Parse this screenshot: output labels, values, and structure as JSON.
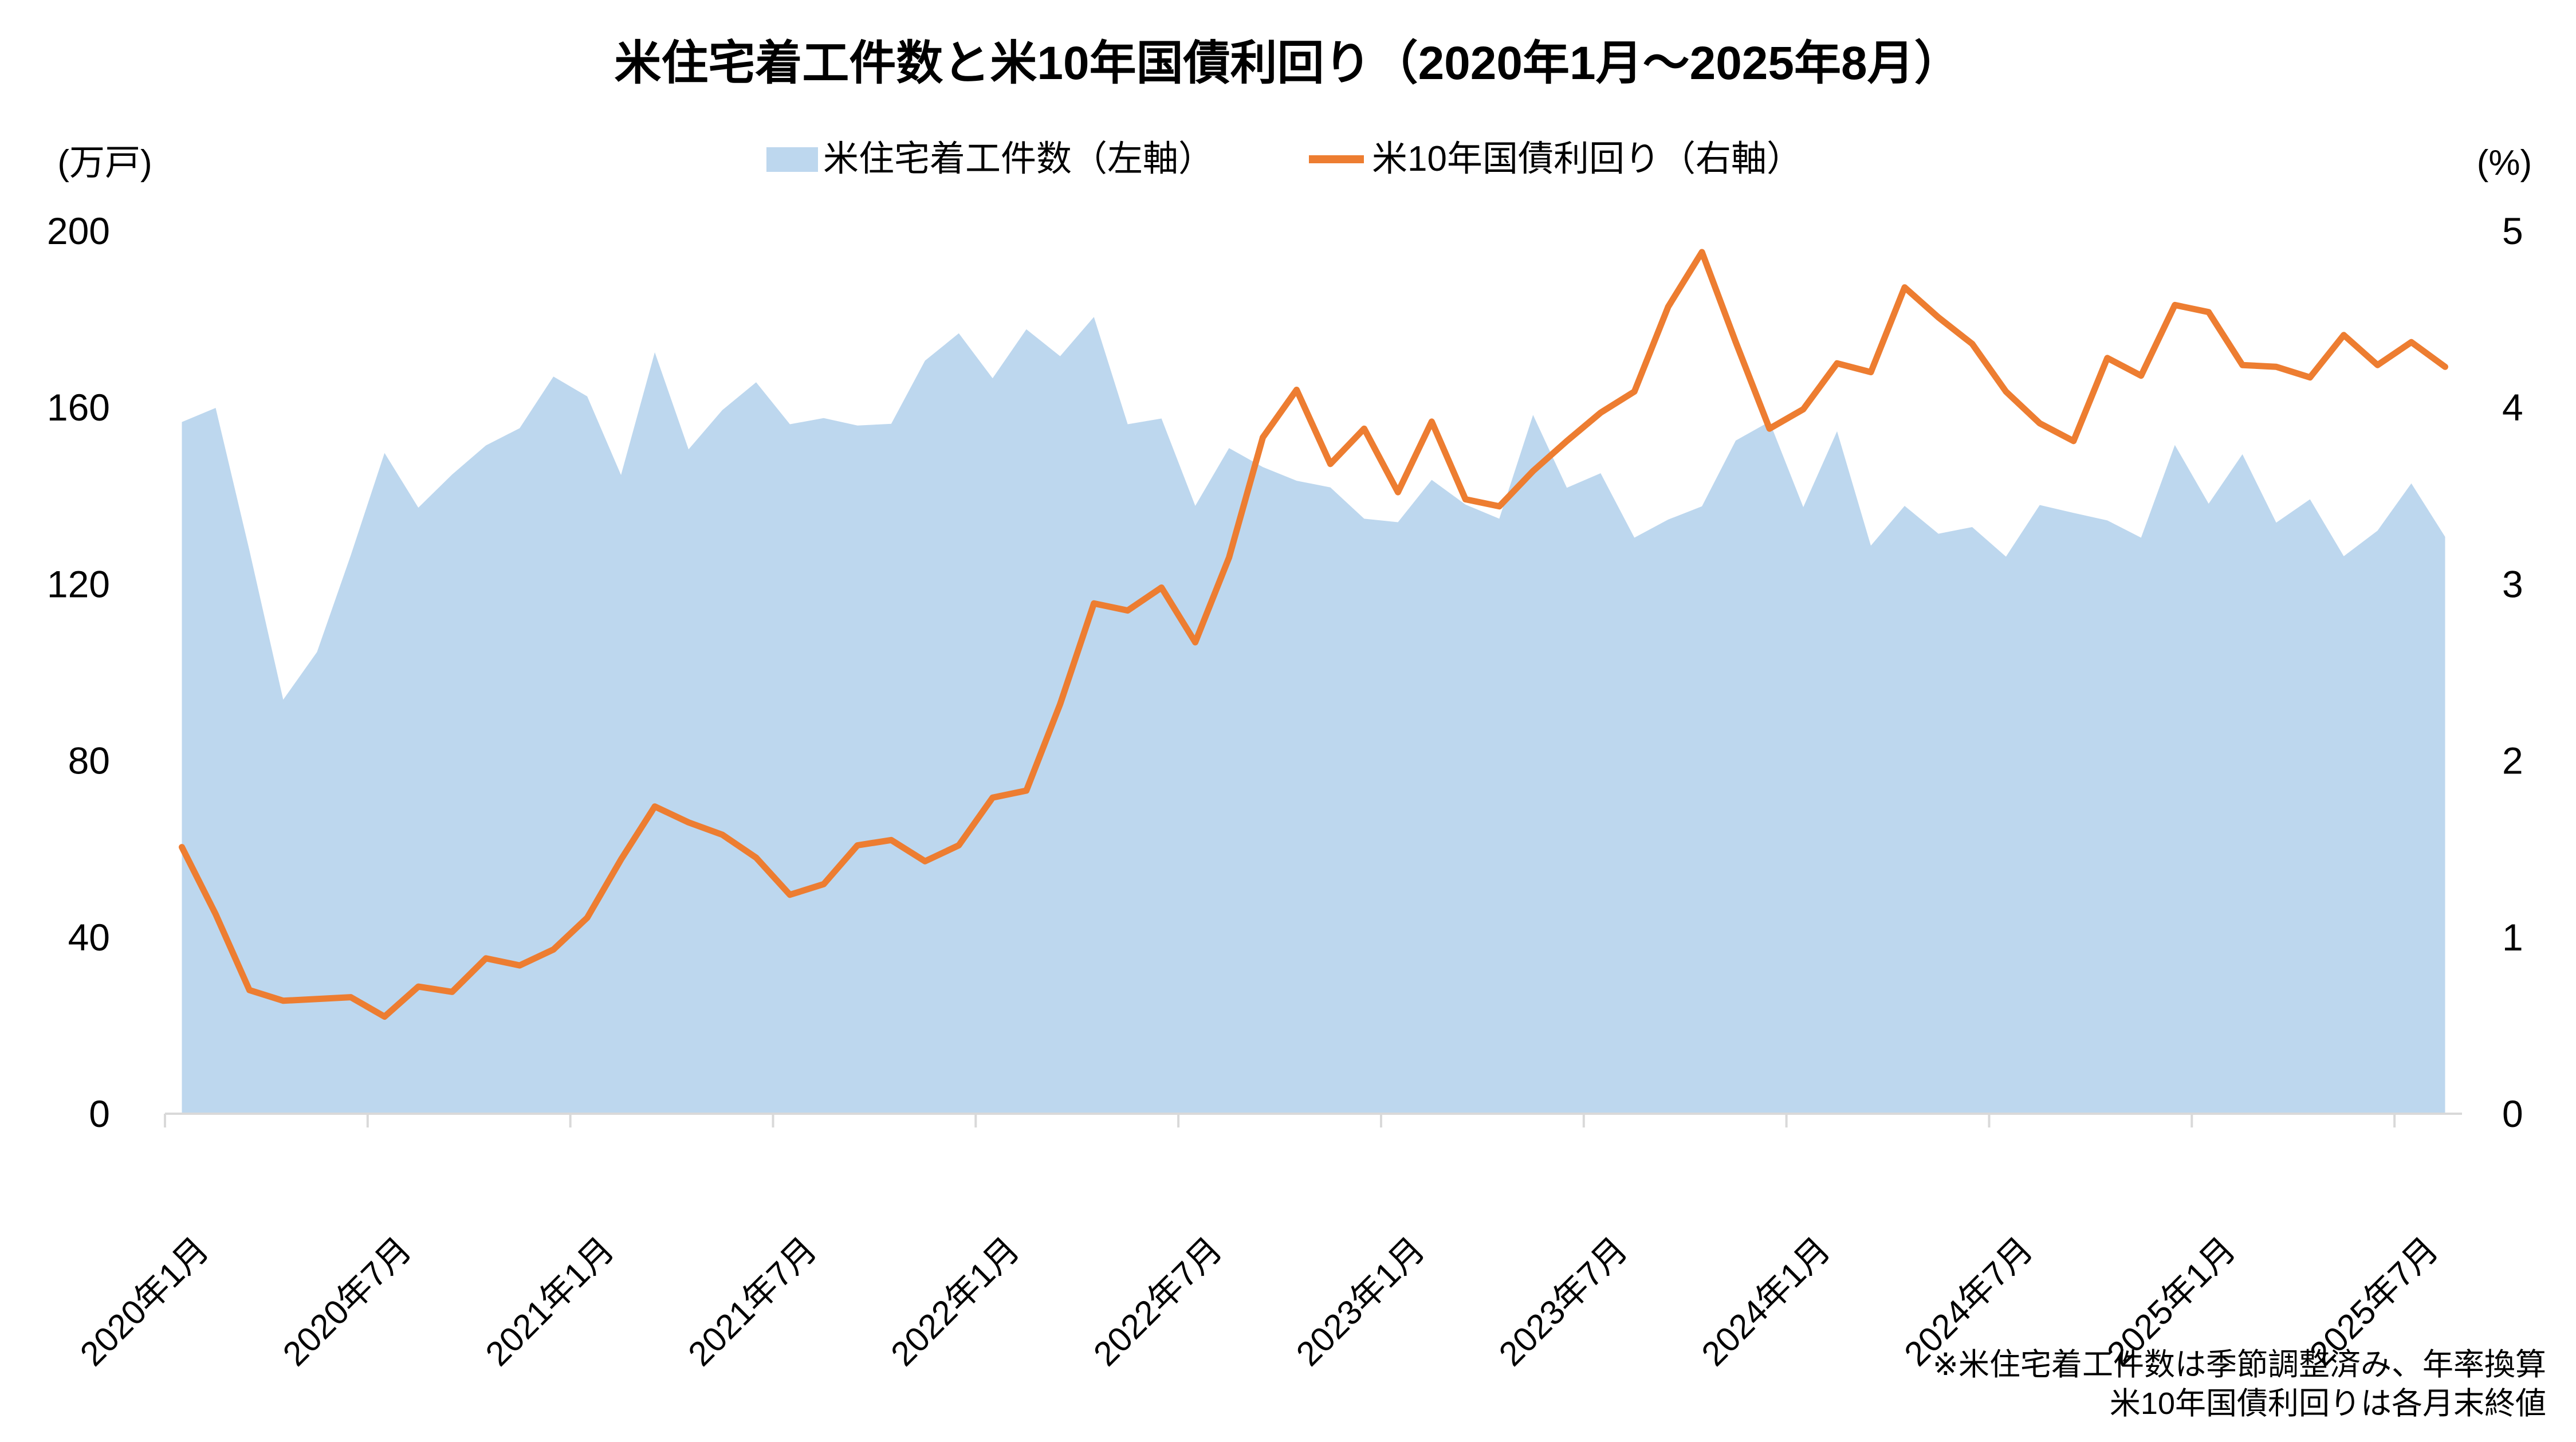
{
  "chart_data": {
    "type": "combo",
    "title": "米住宅着工件数と米10年国債利回り（2020年1月～2025年8月）",
    "footnote": {
      "line1": "※米住宅着工件数は季節調整済み、年率換算",
      "line2": "米10年国債利回りは各月末終値"
    },
    "legend_position": "top-center",
    "grid": "off",
    "x": [
      "2020-01",
      "2020-02",
      "2020-03",
      "2020-04",
      "2020-05",
      "2020-06",
      "2020-07",
      "2020-08",
      "2020-09",
      "2020-10",
      "2020-11",
      "2020-12",
      "2021-01",
      "2021-02",
      "2021-03",
      "2021-04",
      "2021-05",
      "2021-06",
      "2021-07",
      "2021-08",
      "2021-09",
      "2021-10",
      "2021-11",
      "2021-12",
      "2022-01",
      "2022-02",
      "2022-03",
      "2022-04",
      "2022-05",
      "2022-06",
      "2022-07",
      "2022-08",
      "2022-09",
      "2022-10",
      "2022-11",
      "2022-12",
      "2023-01",
      "2023-02",
      "2023-03",
      "2023-04",
      "2023-05",
      "2023-06",
      "2023-07",
      "2023-08",
      "2023-09",
      "2023-10",
      "2023-11",
      "2023-12",
      "2024-01",
      "2024-02",
      "2024-03",
      "2024-04",
      "2024-05",
      "2024-06",
      "2024-07",
      "2024-08",
      "2024-09",
      "2024-10",
      "2024-11",
      "2024-12",
      "2025-01",
      "2025-02",
      "2025-03",
      "2025-04",
      "2025-05",
      "2025-06",
      "2025-07",
      "2025-08"
    ],
    "x_tick_labels": [
      "2020年1月",
      "2020年7月",
      "2021年1月",
      "2021年7月",
      "2022年1月",
      "2022年7月",
      "2023年1月",
      "2023年7月",
      "2024年1月",
      "2024年7月",
      "2025年1月",
      "2025年7月"
    ],
    "x_tick_every": 6,
    "series": [
      {
        "name": "米住宅着工件数（左軸）",
        "type": "area",
        "axis": "left",
        "color": "#BDD7EE",
        "values": [
          156.7,
          159.9,
          127.6,
          93.8,
          104.6,
          126.5,
          149.7,
          137.3,
          144.8,
          151.4,
          155.3,
          167.0,
          162.5,
          144.7,
          172.5,
          150.5,
          159.4,
          165.7,
          156.2,
          157.6,
          155.9,
          156.3,
          170.6,
          176.8,
          166.6,
          177.7,
          171.6,
          180.5,
          156.2,
          157.5,
          137.7,
          150.8,
          146.5,
          143.4,
          141.9,
          134.8,
          134.0,
          143.6,
          138.0,
          134.8,
          158.3,
          141.8,
          145.1,
          130.5,
          134.6,
          137.6,
          152.5,
          156.8,
          137.4,
          154.6,
          128.7,
          137.7,
          131.4,
          132.9,
          126.2,
          137.9,
          136.1,
          134.4,
          130.5,
          151.5,
          138.2,
          149.4,
          133.9,
          139.2,
          126.3,
          132.1,
          142.8,
          130.7
        ]
      },
      {
        "name": "米10年国債利回り（右軸）",
        "type": "line",
        "axis": "right",
        "color": "#ED7D31",
        "values": [
          1.51,
          1.13,
          0.7,
          0.64,
          0.65,
          0.66,
          0.55,
          0.72,
          0.69,
          0.88,
          0.84,
          0.93,
          1.11,
          1.44,
          1.74,
          1.65,
          1.58,
          1.45,
          1.24,
          1.3,
          1.52,
          1.55,
          1.43,
          1.52,
          1.79,
          1.83,
          2.32,
          2.89,
          2.85,
          2.98,
          2.67,
          3.15,
          3.83,
          4.1,
          3.68,
          3.88,
          3.52,
          3.92,
          3.48,
          3.44,
          3.64,
          3.81,
          3.97,
          4.09,
          4.57,
          4.88,
          4.37,
          3.88,
          3.99,
          4.25,
          4.2,
          4.68,
          4.51,
          4.36,
          4.09,
          3.91,
          3.81,
          4.28,
          4.18,
          4.58,
          4.54,
          4.24,
          4.23,
          4.17,
          4.41,
          4.24,
          4.37,
          4.23
        ]
      }
    ],
    "left_axis": {
      "unit": "(万戸)",
      "ticks": [
        0,
        40,
        80,
        120,
        160,
        200
      ],
      "range": [
        0,
        200
      ]
    },
    "right_axis": {
      "unit": "(%)",
      "ticks": [
        0,
        1,
        2,
        3,
        4,
        5
      ],
      "range": [
        0,
        5
      ]
    },
    "axis_color": "#D9D9D9",
    "text_color": "#000000",
    "background": "#FFFFFF"
  }
}
